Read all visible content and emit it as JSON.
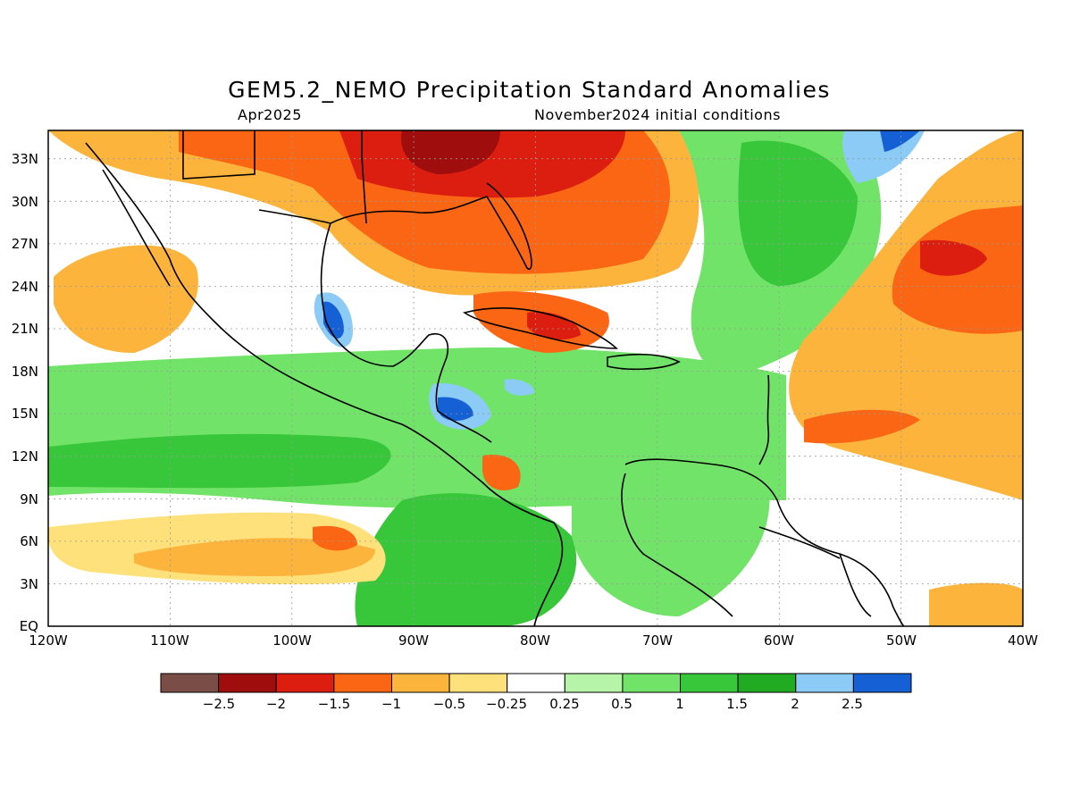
{
  "title": "GEM5.2_NEMO Precipitation Standard Anomalies",
  "subtitle_left": "Apr2025",
  "subtitle_right": "November2024 initial conditions",
  "map": {
    "lat_labels": [
      "EQ",
      "3N",
      "6N",
      "9N",
      "12N",
      "15N",
      "18N",
      "21N",
      "24N",
      "27N",
      "30N",
      "33N"
    ],
    "lon_labels": [
      "120W",
      "110W",
      "100W",
      "90W",
      "80W",
      "70W",
      "60W",
      "50W",
      "40W"
    ],
    "extent": {
      "lon_min": -120,
      "lon_max": -40,
      "lat_min": 0,
      "lat_max": 35
    },
    "grid": true
  },
  "colorbar": {
    "colors": [
      "#7a4e46",
      "#a00d0d",
      "#db1e10",
      "#fb6614",
      "#fdb43d",
      "#fee17b",
      "#ffffff",
      "#b6f4a8",
      "#72e369",
      "#38c73a",
      "#20ab22",
      "#8ccbf6",
      "#1560d4"
    ],
    "labels": [
      "−2.5",
      "−2",
      "−1.5",
      "−1",
      "−0.5",
      "−0.25",
      "0.25",
      "0.5",
      "1",
      "1.5",
      "2",
      "2.5"
    ]
  }
}
